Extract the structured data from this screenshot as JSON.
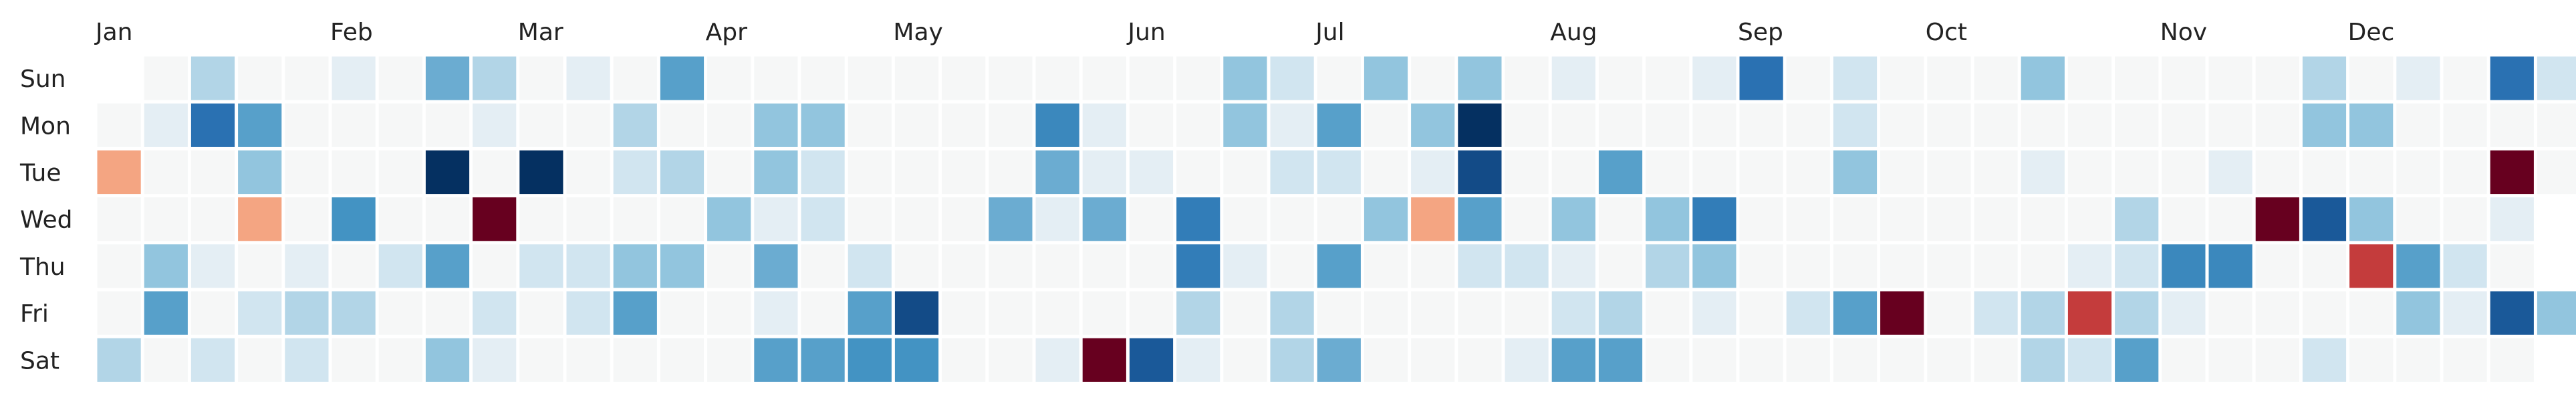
{
  "chart_data": {
    "type": "heatmap",
    "title": "",
    "xlabel": "",
    "ylabel": "",
    "rows": [
      "Sun",
      "Mon",
      "Tue",
      "Wed",
      "Thu",
      "Fri",
      "Sat"
    ],
    "month_labels": [
      {
        "label": "Jan",
        "week": 0
      },
      {
        "label": "Feb",
        "week": 5
      },
      {
        "label": "Mar",
        "week": 9
      },
      {
        "label": "Apr",
        "week": 13
      },
      {
        "label": "May",
        "week": 17
      },
      {
        "label": "Jun",
        "week": 22
      },
      {
        "label": "Jul",
        "week": 26
      },
      {
        "label": "Aug",
        "week": 31
      },
      {
        "label": "Sep",
        "week": 35
      },
      {
        "label": "Oct",
        "week": 39
      },
      {
        "label": "Nov",
        "week": 44
      },
      {
        "label": "Dec",
        "week": 48
      }
    ],
    "weeks": 53,
    "value_range": [
      -1,
      1
    ],
    "colormap": [
      "#67001f",
      "#b2182b",
      "#d6604d",
      "#f4a582",
      "#fddbc7",
      "#f7f7f7",
      "#d1e5f0",
      "#92c5de",
      "#4393c3",
      "#2166ac",
      "#053061"
    ],
    "empty_color": "#f6f7f7",
    "grid": [
      [
        null,
        0,
        0.3,
        0,
        0,
        0.1,
        0,
        0.5,
        0.3,
        0,
        0.1,
        0,
        0.55,
        0,
        0,
        0,
        0,
        0,
        0,
        0,
        0,
        0,
        0,
        0,
        0.4,
        0.2,
        0,
        0.4,
        0,
        0.4,
        0,
        0.1,
        0,
        0,
        0.1,
        0.75,
        0,
        0.2,
        0,
        0,
        0,
        0.4,
        0,
        0,
        0,
        0,
        0,
        0.3,
        0,
        0.1,
        0,
        0.75,
        0.2
      ],
      [
        0,
        0.1,
        0.75,
        0.55,
        0,
        0,
        0,
        0,
        0.1,
        0,
        0,
        0.3,
        0,
        0,
        0.4,
        0.4,
        0,
        0,
        0,
        0,
        0.65,
        0.1,
        0,
        0,
        0.4,
        0.1,
        0.55,
        0,
        0.4,
        1,
        0,
        0,
        0,
        0,
        0,
        0,
        0,
        0.2,
        0,
        0,
        0,
        0,
        0,
        0,
        0,
        0,
        0,
        0.4,
        0.4,
        0,
        0,
        0,
        0
      ],
      [
        -0.4,
        0,
        0,
        0.4,
        0,
        0,
        0,
        1,
        0,
        1,
        0,
        0.2,
        0.3,
        0,
        0.4,
        0.2,
        0,
        0,
        0,
        0,
        0.5,
        0.1,
        0.1,
        0,
        0,
        0.2,
        0.2,
        0,
        0.1,
        0.9,
        0,
        0,
        0.55,
        0,
        0,
        0,
        0,
        0.4,
        0,
        0,
        0,
        0.1,
        0,
        0,
        0,
        0.1,
        0,
        0,
        0,
        0,
        0,
        -1,
        0
      ],
      [
        0,
        0,
        0,
        -0.4,
        0,
        0.6,
        0,
        0,
        -1,
        0,
        0,
        0,
        0,
        0.4,
        0.1,
        0.2,
        0,
        0,
        0,
        0.5,
        0.1,
        0.5,
        0,
        0.7,
        0,
        0,
        0,
        0.4,
        -0.4,
        0.55,
        0,
        0.4,
        0,
        0.4,
        0.7,
        0,
        0,
        0,
        0,
        0,
        0,
        0,
        0,
        0.3,
        0,
        0,
        -1,
        0.85,
        0.4,
        0,
        0,
        0.1,
        null
      ],
      [
        0,
        0.4,
        0.1,
        0,
        0.1,
        0,
        0.2,
        0.55,
        0,
        0.2,
        0.2,
        0.4,
        0.4,
        0,
        0.5,
        0,
        0.2,
        0,
        0,
        0,
        0,
        0,
        0,
        0.7,
        0.1,
        0,
        0.55,
        0,
        0,
        0.2,
        0.2,
        0.1,
        0,
        0.3,
        0.4,
        0,
        0,
        0,
        0,
        0,
        0,
        0,
        0.1,
        0.2,
        0.65,
        0.65,
        0,
        0,
        -0.7,
        0.55,
        0.2,
        0,
        null
      ],
      [
        0,
        0.55,
        0,
        0.2,
        0.3,
        0.3,
        0,
        0,
        0.2,
        0,
        0.2,
        0.55,
        0,
        0,
        0.1,
        0,
        0.55,
        0.9,
        0,
        0,
        0,
        0,
        0,
        0.3,
        0,
        0.3,
        0,
        0,
        0,
        0,
        0,
        0.2,
        0.3,
        0,
        0.1,
        0,
        0.2,
        0.55,
        -1,
        0,
        0.2,
        0.3,
        -0.7,
        0.3,
        0.1,
        0,
        0,
        0,
        0,
        0.4,
        0.1,
        0.85,
        0.4
      ],
      [
        0.3,
        0,
        0.2,
        0,
        0.2,
        0,
        0,
        0.4,
        0.1,
        0,
        0,
        0,
        0,
        0,
        0.55,
        0.55,
        0.6,
        0.6,
        0,
        0,
        0.1,
        -1,
        0.85,
        0.1,
        0,
        0.3,
        0.5,
        0,
        0,
        0,
        0.1,
        0.55,
        0.55,
        0,
        0,
        0,
        0,
        0,
        0,
        0,
        0,
        0.3,
        0.2,
        0.55,
        0,
        0,
        0,
        0.2,
        0,
        0,
        0,
        0,
        null
      ]
    ]
  }
}
